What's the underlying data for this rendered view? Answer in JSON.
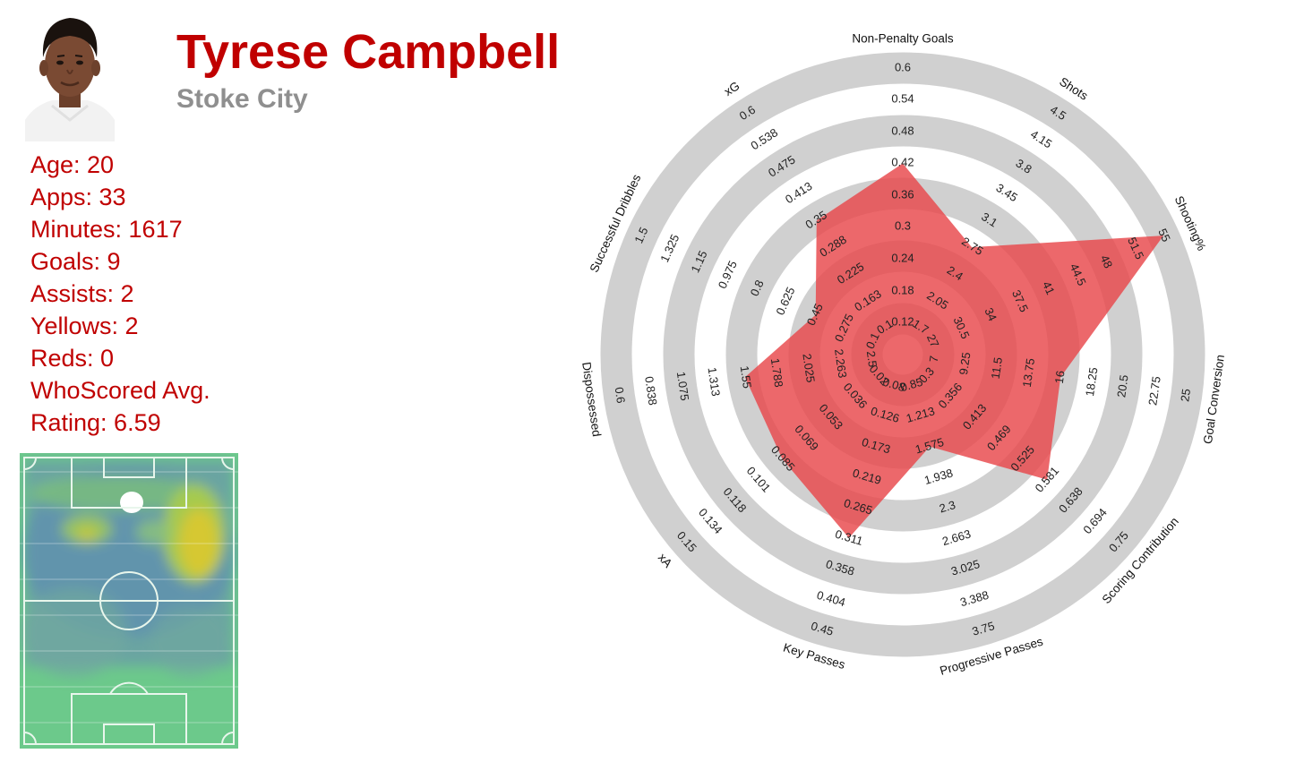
{
  "player": {
    "name": "Tyrese Campbell",
    "team": "Stoke City",
    "stats": [
      "Age: 20",
      "Apps: 33",
      "Minutes: 1617",
      "Goals: 9",
      "Assists: 2",
      "Yellows: 2",
      "Reds: 0",
      "WhoScored Avg.",
      "Rating: 6.59"
    ]
  },
  "colors": {
    "title": "#c00000",
    "team": "#8f8f8f",
    "radar_fill": "#e8474a",
    "ring": "#d0d0d0"
  },
  "chart_data": {
    "type": "radar",
    "title": "",
    "axes": [
      {
        "name": "Non-Penalty Goals",
        "ticks": [
          "0.12",
          "0.18",
          "0.24",
          "0.3",
          "0.36",
          "0.42",
          "0.48",
          "0.54",
          "0.6"
        ],
        "value": 0.42
      },
      {
        "name": "Shots",
        "ticks": [
          "1.7",
          "2.05",
          "2.4",
          "2.75",
          "3.1",
          "3.45",
          "3.8",
          "4.15",
          "4.5"
        ],
        "value": 2.75
      },
      {
        "name": "Shooting%",
        "ticks": [
          "27",
          "30.5",
          "34",
          "37.5",
          "41",
          "44.5",
          "48",
          "51.5",
          "55"
        ],
        "value": 55
      },
      {
        "name": "Goal Conversion",
        "ticks": [
          "7",
          "9.25",
          "11.5",
          "13.75",
          "16",
          "18.25",
          "20.5",
          "22.75",
          "25"
        ],
        "value": 16
      },
      {
        "name": "Scoring Contribution",
        "ticks": [
          "0.3",
          "0.356",
          "0.413",
          "0.469",
          "0.525",
          "0.581",
          "0.638",
          "0.694",
          "0.75"
        ],
        "value": 0.581
      },
      {
        "name": "Progressive Passes",
        "ticks": [
          "0.85",
          "1.213",
          "1.575",
          "1.938",
          "2.3",
          "2.663",
          "3.025",
          "3.388",
          "3.75"
        ],
        "value": 1.575
      },
      {
        "name": "Key Passes",
        "ticks": [
          "0.08",
          "0.126",
          "0.173",
          "0.219",
          "0.265",
          "0.311",
          "0.358",
          "0.404",
          "0.45"
        ],
        "value": 0.311
      },
      {
        "name": "xA",
        "ticks": [
          "0.02",
          "0.036",
          "0.053",
          "0.069",
          "0.085",
          "0.101",
          "0.118",
          "0.134",
          "0.15"
        ],
        "value": 0.085
      },
      {
        "name": "Dispossessed",
        "ticks": [
          "2.5",
          "2.263",
          "2.025",
          "1.788",
          "1.55",
          "1.313",
          "1.075",
          "0.838",
          "0.6"
        ],
        "value": 1.55
      },
      {
        "name": "Successful Dribbles",
        "ticks": [
          "0.1",
          "0.275",
          "0.45",
          "0.625",
          "0.8",
          "0.975",
          "1.15",
          "1.325",
          "1.5"
        ],
        "value": 0.45
      },
      {
        "name": "xG",
        "ticks": [
          "0.1",
          "0.163",
          "0.225",
          "0.288",
          "0.35",
          "0.413",
          "0.475",
          "0.538",
          "0.6"
        ],
        "value": 0.35
      }
    ],
    "grid": true,
    "legend": "none"
  }
}
